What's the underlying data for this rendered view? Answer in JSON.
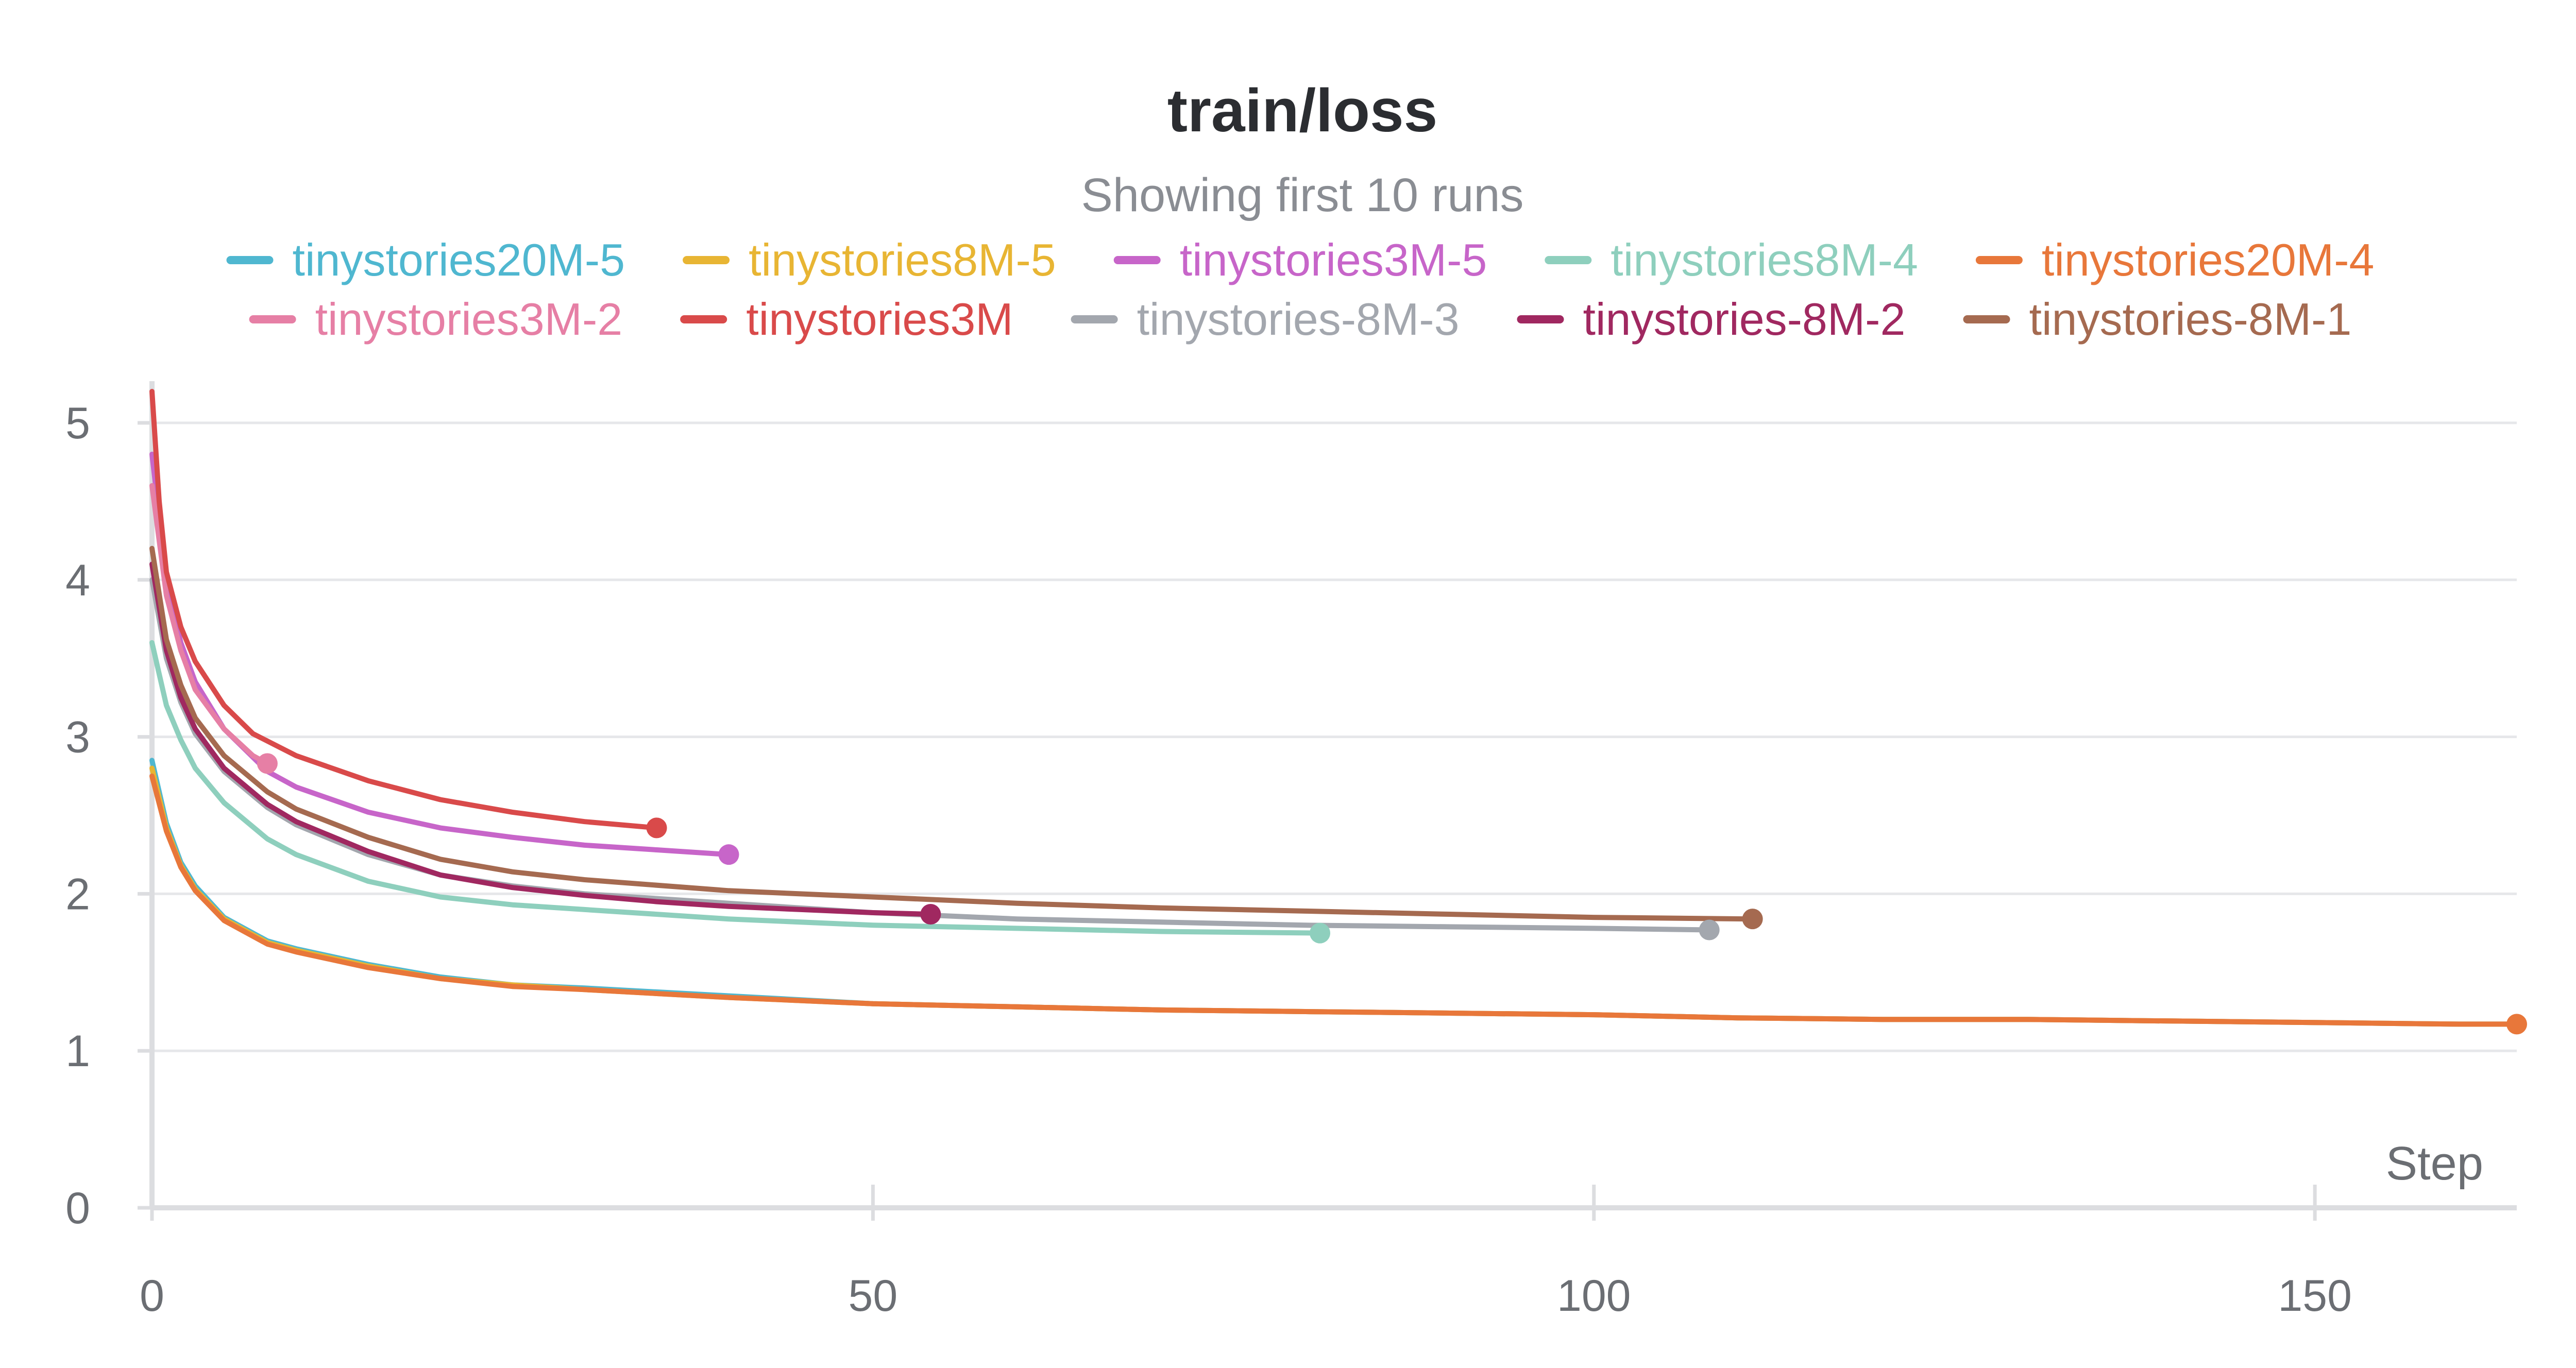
{
  "chart_data": {
    "type": "line",
    "title": "train/loss",
    "subtitle": "Showing first 10 runs",
    "xlabel": "Step",
    "ylabel": "",
    "xlim": [
      0,
      164
    ],
    "ylim": [
      0,
      5.2
    ],
    "xticks": [
      0,
      50,
      100,
      150
    ],
    "yticks": [
      0,
      1,
      2,
      3,
      4,
      5
    ],
    "grid": true,
    "legend_position": "top",
    "series": [
      {
        "name": "tinystories20M-5",
        "color": "#4fb7d0",
        "marker": false,
        "points": [
          [
            0,
            2.85
          ],
          [
            1,
            2.45
          ],
          [
            2,
            2.2
          ],
          [
            3,
            2.05
          ],
          [
            5,
            1.85
          ],
          [
            8,
            1.7
          ],
          [
            10,
            1.65
          ],
          [
            15,
            1.55
          ],
          [
            20,
            1.47
          ],
          [
            25,
            1.42
          ],
          [
            30,
            1.4
          ],
          [
            40,
            1.35
          ],
          [
            50,
            1.3
          ],
          [
            60,
            1.28
          ],
          [
            70,
            1.26
          ],
          [
            80,
            1.25
          ],
          [
            90,
            1.24
          ],
          [
            100,
            1.23
          ],
          [
            110,
            1.21
          ],
          [
            120,
            1.2
          ],
          [
            130,
            1.2
          ],
          [
            140,
            1.19
          ],
          [
            150,
            1.18
          ],
          [
            160,
            1.17
          ],
          [
            164,
            1.17
          ]
        ]
      },
      {
        "name": "tinystories8M-5",
        "color": "#e8b533",
        "marker": false,
        "points": [
          [
            0,
            2.8
          ],
          [
            1,
            2.42
          ],
          [
            2,
            2.18
          ],
          [
            3,
            2.03
          ],
          [
            5,
            1.84
          ],
          [
            8,
            1.69
          ],
          [
            10,
            1.64
          ],
          [
            15,
            1.54
          ],
          [
            20,
            1.46
          ],
          [
            25,
            1.42
          ],
          [
            30,
            1.39
          ],
          [
            40,
            1.34
          ],
          [
            50,
            1.3
          ],
          [
            60,
            1.28
          ],
          [
            70,
            1.26
          ],
          [
            80,
            1.25
          ],
          [
            90,
            1.24
          ],
          [
            100,
            1.23
          ],
          [
            110,
            1.21
          ],
          [
            120,
            1.2
          ],
          [
            130,
            1.2
          ],
          [
            140,
            1.19
          ],
          [
            150,
            1.18
          ],
          [
            160,
            1.17
          ],
          [
            164,
            1.17
          ]
        ]
      },
      {
        "name": "tinystories3M-5",
        "color": "#c765c9",
        "marker": true,
        "points": [
          [
            0,
            4.8
          ],
          [
            1,
            4.0
          ],
          [
            2,
            3.6
          ],
          [
            3,
            3.35
          ],
          [
            5,
            3.05
          ],
          [
            8,
            2.78
          ],
          [
            10,
            2.68
          ],
          [
            15,
            2.52
          ],
          [
            20,
            2.42
          ],
          [
            25,
            2.36
          ],
          [
            30,
            2.31
          ],
          [
            35,
            2.28
          ],
          [
            40,
            2.25
          ]
        ]
      },
      {
        "name": "tinystories8M-4",
        "color": "#8ecfbd",
        "marker": true,
        "points": [
          [
            0,
            3.6
          ],
          [
            1,
            3.2
          ],
          [
            2,
            2.98
          ],
          [
            3,
            2.8
          ],
          [
            5,
            2.58
          ],
          [
            8,
            2.35
          ],
          [
            10,
            2.25
          ],
          [
            15,
            2.08
          ],
          [
            20,
            1.98
          ],
          [
            25,
            1.93
          ],
          [
            30,
            1.9
          ],
          [
            40,
            1.84
          ],
          [
            50,
            1.8
          ],
          [
            60,
            1.78
          ],
          [
            70,
            1.76
          ],
          [
            81,
            1.75
          ]
        ]
      },
      {
        "name": "tinystories20M-4",
        "color": "#e8773a",
        "marker": true,
        "points": [
          [
            0,
            2.75
          ],
          [
            1,
            2.4
          ],
          [
            2,
            2.17
          ],
          [
            3,
            2.02
          ],
          [
            5,
            1.83
          ],
          [
            8,
            1.68
          ],
          [
            10,
            1.63
          ],
          [
            15,
            1.53
          ],
          [
            20,
            1.46
          ],
          [
            25,
            1.41
          ],
          [
            30,
            1.39
          ],
          [
            40,
            1.34
          ],
          [
            50,
            1.3
          ],
          [
            60,
            1.28
          ],
          [
            70,
            1.26
          ],
          [
            80,
            1.25
          ],
          [
            90,
            1.24
          ],
          [
            100,
            1.23
          ],
          [
            110,
            1.21
          ],
          [
            120,
            1.2
          ],
          [
            130,
            1.2
          ],
          [
            140,
            1.19
          ],
          [
            150,
            1.18
          ],
          [
            160,
            1.17
          ],
          [
            164,
            1.17
          ]
        ]
      },
      {
        "name": "tinystories3M-2",
        "color": "#e67fa5",
        "marker": true,
        "points": [
          [
            0,
            4.6
          ],
          [
            1,
            3.9
          ],
          [
            2,
            3.55
          ],
          [
            3,
            3.3
          ],
          [
            5,
            3.05
          ],
          [
            7,
            2.88
          ],
          [
            8,
            2.83
          ]
        ]
      },
      {
        "name": "tinystories3M",
        "color": "#d94a4a",
        "marker": true,
        "points": [
          [
            0,
            5.2
          ],
          [
            0.5,
            4.5
          ],
          [
            1,
            4.05
          ],
          [
            2,
            3.7
          ],
          [
            3,
            3.48
          ],
          [
            5,
            3.2
          ],
          [
            7,
            3.02
          ],
          [
            10,
            2.88
          ],
          [
            15,
            2.72
          ],
          [
            20,
            2.6
          ],
          [
            25,
            2.52
          ],
          [
            30,
            2.46
          ],
          [
            35,
            2.42
          ]
        ]
      },
      {
        "name": "tinystories-8M-3",
        "color": "#a3a7ae",
        "marker": true,
        "points": [
          [
            0,
            4.0
          ],
          [
            1,
            3.5
          ],
          [
            2,
            3.22
          ],
          [
            3,
            3.02
          ],
          [
            5,
            2.78
          ],
          [
            8,
            2.55
          ],
          [
            10,
            2.44
          ],
          [
            15,
            2.25
          ],
          [
            20,
            2.12
          ],
          [
            25,
            2.05
          ],
          [
            30,
            2.0
          ],
          [
            40,
            1.94
          ],
          [
            50,
            1.88
          ],
          [
            60,
            1.84
          ],
          [
            70,
            1.82
          ],
          [
            80,
            1.8
          ],
          [
            90,
            1.79
          ],
          [
            100,
            1.78
          ],
          [
            108,
            1.77
          ]
        ]
      },
      {
        "name": "tinystories-8M-2",
        "color": "#a02860",
        "marker": true,
        "points": [
          [
            0,
            4.1
          ],
          [
            1,
            3.55
          ],
          [
            2,
            3.25
          ],
          [
            3,
            3.05
          ],
          [
            5,
            2.8
          ],
          [
            8,
            2.57
          ],
          [
            10,
            2.46
          ],
          [
            15,
            2.27
          ],
          [
            20,
            2.12
          ],
          [
            25,
            2.04
          ],
          [
            30,
            1.99
          ],
          [
            35,
            1.95
          ],
          [
            40,
            1.92
          ],
          [
            45,
            1.9
          ],
          [
            50,
            1.88
          ],
          [
            54,
            1.87
          ]
        ]
      },
      {
        "name": "tinystories-8M-1",
        "color": "#a56a50",
        "marker": true,
        "points": [
          [
            0,
            4.2
          ],
          [
            1,
            3.62
          ],
          [
            2,
            3.33
          ],
          [
            3,
            3.12
          ],
          [
            5,
            2.88
          ],
          [
            8,
            2.65
          ],
          [
            10,
            2.54
          ],
          [
            15,
            2.36
          ],
          [
            20,
            2.22
          ],
          [
            25,
            2.14
          ],
          [
            30,
            2.09
          ],
          [
            40,
            2.02
          ],
          [
            50,
            1.98
          ],
          [
            60,
            1.94
          ],
          [
            70,
            1.91
          ],
          [
            80,
            1.89
          ],
          [
            90,
            1.87
          ],
          [
            100,
            1.85
          ],
          [
            111,
            1.84
          ]
        ]
      }
    ]
  }
}
